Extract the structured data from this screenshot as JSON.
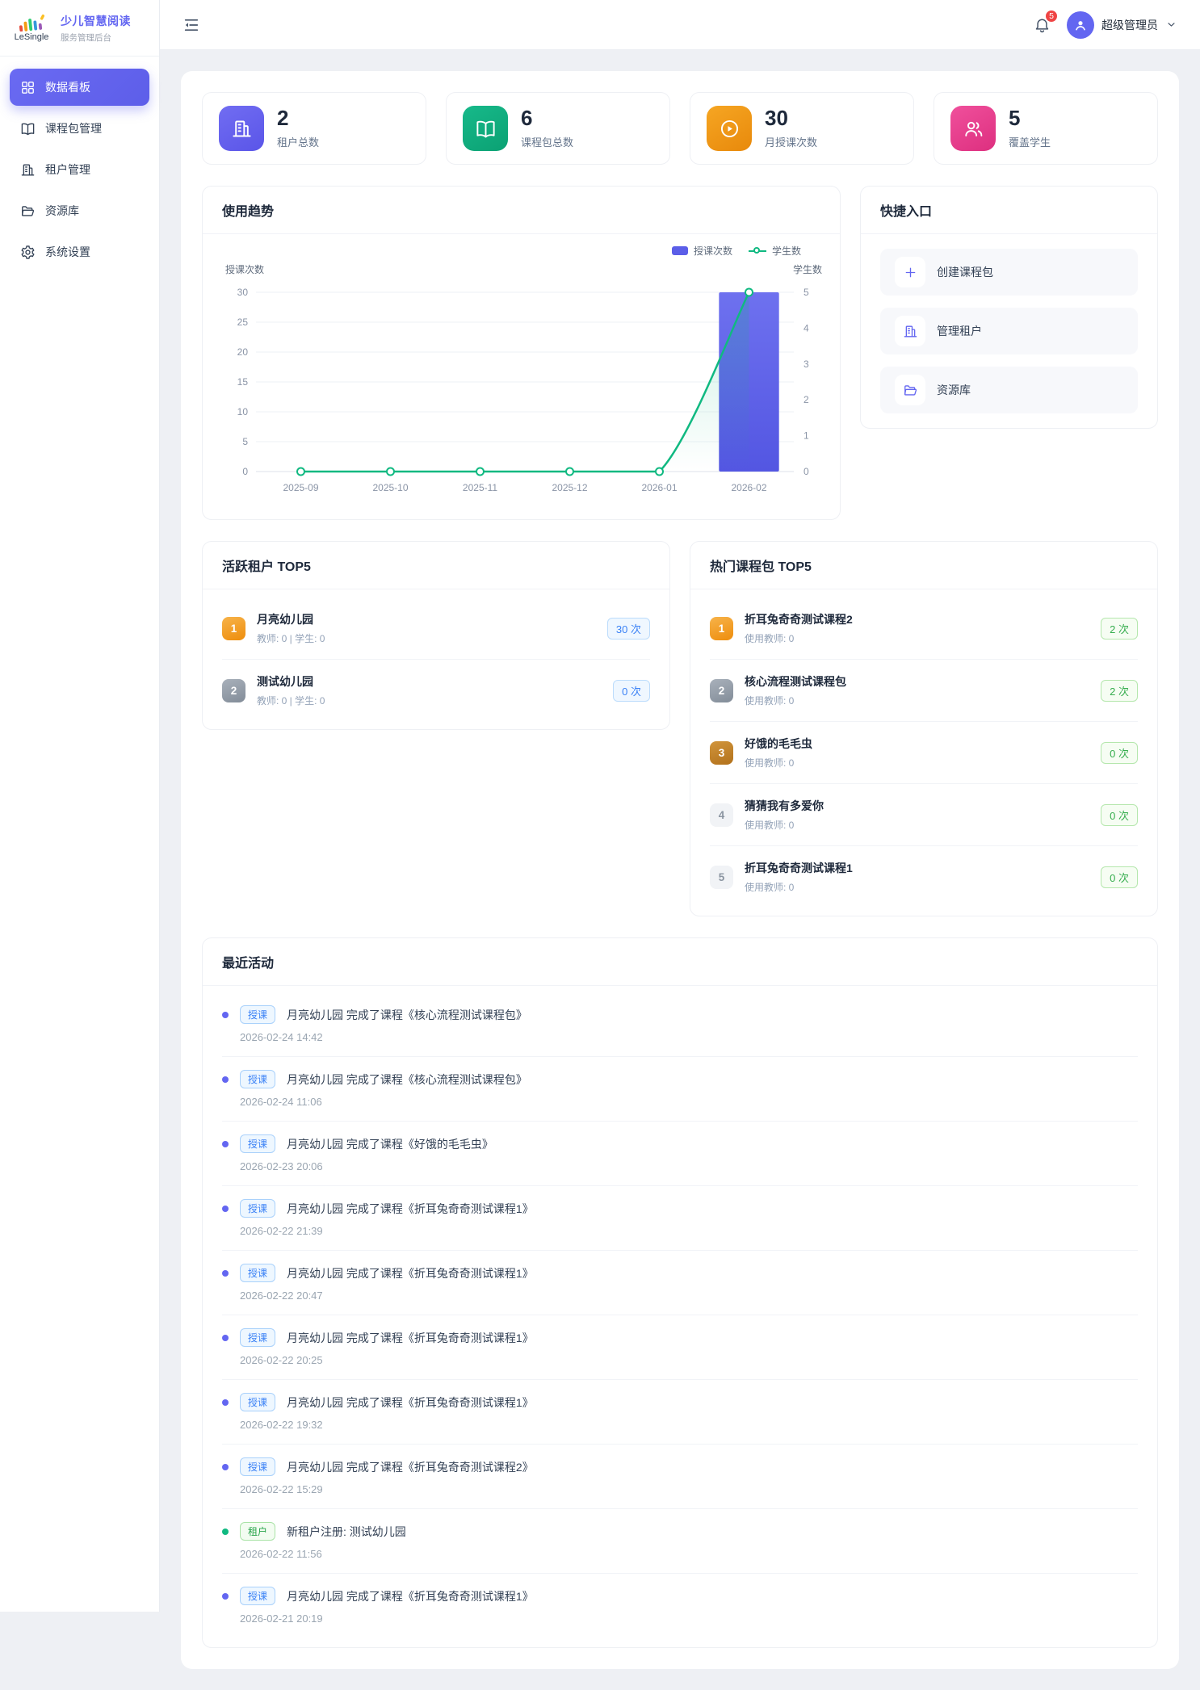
{
  "brand": {
    "logo_text": "LeSingle",
    "title": "少儿智慧阅读",
    "subtitle": "服务管理后台"
  },
  "sidebar": {
    "items": [
      {
        "name": "dashboard",
        "icon": "grid",
        "label": "数据看板",
        "active": true
      },
      {
        "name": "course-packages",
        "icon": "book",
        "label": "课程包管理",
        "active": false
      },
      {
        "name": "tenants",
        "icon": "building",
        "label": "租户管理",
        "active": false
      },
      {
        "name": "resources",
        "icon": "folder",
        "label": "资源库",
        "active": false
      },
      {
        "name": "settings",
        "icon": "gear",
        "label": "系统设置",
        "active": false
      }
    ]
  },
  "header": {
    "notification_count": "5",
    "user_name": "超级管理员"
  },
  "stats": [
    {
      "value": "2",
      "label": "租户总数",
      "icon": "building",
      "gradient": [
        "#716df2",
        "#5a55e8"
      ]
    },
    {
      "value": "6",
      "label": "课程包总数",
      "icon": "book",
      "gradient": [
        "#17b98a",
        "#0ba173"
      ]
    },
    {
      "value": "30",
      "label": "月授课次数",
      "icon": "play",
      "gradient": [
        "#f6a623",
        "#e8890b"
      ]
    },
    {
      "value": "5",
      "label": "覆盖学生",
      "icon": "people",
      "gradient": [
        "#f0509c",
        "#dd2f7f"
      ]
    }
  ],
  "usage_trend": {
    "title": "使用趋势"
  },
  "chart_data": {
    "type": "bar+line",
    "categories": [
      "2025-09",
      "2025-10",
      "2025-11",
      "2025-12",
      "2026-01",
      "2026-02"
    ],
    "series": [
      {
        "name": "授课次数",
        "type": "bar",
        "values": [
          0,
          0,
          0,
          0,
          0,
          30
        ],
        "color": "#5b5ee8",
        "y_axis": "left"
      },
      {
        "name": "学生数",
        "type": "line",
        "values": [
          0,
          0,
          0,
          0,
          0,
          5
        ],
        "color": "#10b981",
        "y_axis": "right"
      }
    ],
    "left_axis": {
      "name": "授课次数",
      "min": 0,
      "max": 30,
      "ticks": [
        0,
        5,
        10,
        15,
        20,
        25,
        30
      ]
    },
    "right_axis": {
      "name": "学生数",
      "min": 0,
      "max": 5,
      "ticks": [
        0,
        1,
        2,
        3,
        4,
        5
      ]
    },
    "legend_position": "top-right",
    "grid": true
  },
  "quick_entry": {
    "title": "快捷入口",
    "items": [
      {
        "icon": "plus",
        "label": "创建课程包"
      },
      {
        "icon": "building",
        "label": "管理租户"
      },
      {
        "icon": "folder",
        "label": "资源库"
      }
    ]
  },
  "active_tenants": {
    "title": "活跃租户 TOP5",
    "items": [
      {
        "rank": "1",
        "name": "月亮幼儿园",
        "meta": "教师: 0 | 学生: 0",
        "count": "30 次"
      },
      {
        "rank": "2",
        "name": "测试幼儿园",
        "meta": "教师: 0 | 学生: 0",
        "count": "0 次"
      }
    ]
  },
  "hot_packages": {
    "title": "热门课程包 TOP5",
    "items": [
      {
        "rank": "1",
        "name": "折耳兔奇奇测试课程2",
        "meta": "使用教师: 0",
        "count": "2 次"
      },
      {
        "rank": "2",
        "name": "核心流程测试课程包",
        "meta": "使用教师: 0",
        "count": "2 次"
      },
      {
        "rank": "3",
        "name": "好饿的毛毛虫",
        "meta": "使用教师: 0",
        "count": "0 次"
      },
      {
        "rank": "4",
        "name": "猜猜我有多爱你",
        "meta": "使用教师: 0",
        "count": "0 次"
      },
      {
        "rank": "5",
        "name": "折耳兔奇奇测试课程1",
        "meta": "使用教师: 0",
        "count": "0 次"
      }
    ]
  },
  "recent_activities": {
    "title": "最近活动",
    "items": [
      {
        "kind": "course",
        "badge": "授课",
        "text": "月亮幼儿园 完成了课程《核心流程测试课程包》",
        "time": "2026-02-24 14:42"
      },
      {
        "kind": "course",
        "badge": "授课",
        "text": "月亮幼儿园 完成了课程《核心流程测试课程包》",
        "time": "2026-02-24 11:06"
      },
      {
        "kind": "course",
        "badge": "授课",
        "text": "月亮幼儿园 完成了课程《好饿的毛毛虫》",
        "time": "2026-02-23 20:06"
      },
      {
        "kind": "course",
        "badge": "授课",
        "text": "月亮幼儿园 完成了课程《折耳兔奇奇测试课程1》",
        "time": "2026-02-22 21:39"
      },
      {
        "kind": "course",
        "badge": "授课",
        "text": "月亮幼儿园 完成了课程《折耳兔奇奇测试课程1》",
        "time": "2026-02-22 20:47"
      },
      {
        "kind": "course",
        "badge": "授课",
        "text": "月亮幼儿园 完成了课程《折耳兔奇奇测试课程1》",
        "time": "2026-02-22 20:25"
      },
      {
        "kind": "course",
        "badge": "授课",
        "text": "月亮幼儿园 完成了课程《折耳兔奇奇测试课程1》",
        "time": "2026-02-22 19:32"
      },
      {
        "kind": "course",
        "badge": "授课",
        "text": "月亮幼儿园 完成了课程《折耳兔奇奇测试课程2》",
        "time": "2026-02-22 15:29"
      },
      {
        "kind": "tenant",
        "badge": "租户",
        "text": "新租户注册: 测试幼儿园",
        "time": "2026-02-22 11:56"
      },
      {
        "kind": "course",
        "badge": "授课",
        "text": "月亮幼儿园 完成了课程《折耳兔奇奇测试课程1》",
        "time": "2026-02-21 20:19"
      }
    ]
  }
}
